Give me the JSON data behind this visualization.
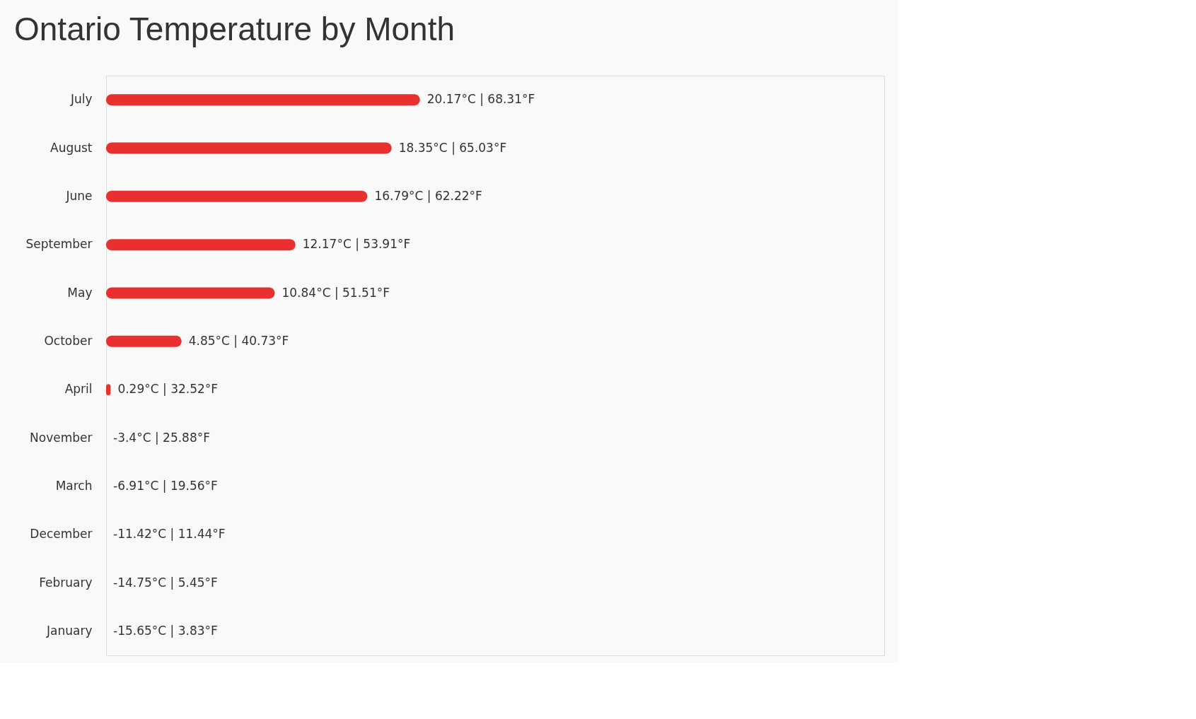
{
  "chart_data": {
    "type": "bar",
    "orientation": "horizontal",
    "title": "Ontario Temperature by Month",
    "categories": [
      "July",
      "August",
      "June",
      "September",
      "May",
      "October",
      "April",
      "November",
      "March",
      "December",
      "February",
      "January"
    ],
    "values": [
      20.17,
      18.35,
      16.79,
      12.17,
      10.84,
      4.85,
      0.29,
      null,
      null,
      null,
      null,
      null
    ],
    "value_labels": [
      "20.17°C | 68.31°F",
      "18.35°C | 65.03°F",
      "16.79°C | 62.22°F",
      "12.17°C | 53.91°F",
      "10.84°C | 51.51°F",
      "4.85°C | 40.73°F",
      "0.29°C | 32.52°F",
      "-3.4°C | 25.88°F",
      "-6.91°C | 19.56°F",
      "-11.42°C | 11.44°F",
      "-14.75°C | 5.45°F",
      "-15.65°C | 3.83°F"
    ],
    "color": "#e8312f",
    "xlim": [
      0,
      50
    ],
    "tick_labels": "y"
  }
}
